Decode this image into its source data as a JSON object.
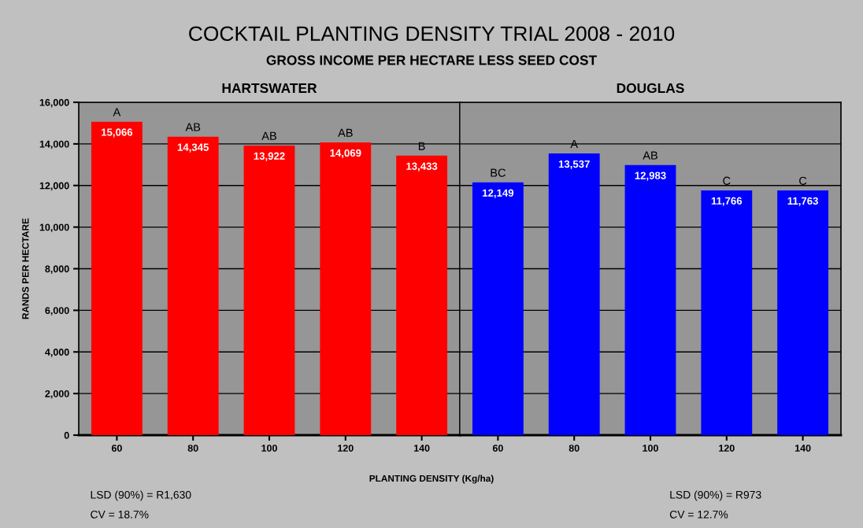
{
  "chart_data": [
    {
      "type": "bar",
      "title": "COCKTAIL PLANTING DENSITY TRIAL 2008 - 2010",
      "subtitle": "GROSS INCOME PER HECTARE LESS SEED COST",
      "xlabel": "PLANTING DENSITY (Kg/ha)",
      "ylabel": "RANDS PER HECTARE",
      "categories": [
        "60",
        "80",
        "100",
        "120",
        "140"
      ],
      "values": [
        15066,
        14345,
        13922,
        14069,
        13433
      ],
      "color": "#ff0000",
      "value_labels": [
        "15,066",
        "14,345",
        "13,922",
        "14,069",
        "13,433"
      ],
      "ylim": [
        0,
        16000
      ],
      "yticks": [
        {
          "value": 0,
          "label": "0"
        },
        {
          "value": 2000,
          "label": "2,000"
        },
        {
          "value": 4000,
          "label": "4,000"
        },
        {
          "value": 6000,
          "label": "6,000"
        },
        {
          "value": 8000,
          "label": "8,000"
        },
        {
          "value": 10000,
          "label": "10,000"
        },
        {
          "value": 12000,
          "label": "12,000"
        },
        {
          "value": 14000,
          "label": "14,000"
        },
        {
          "value": 16000,
          "label": "16,000"
        }
      ],
      "grid": "y",
      "annotations": [
        "HARTSWATER",
        "LSD (90%) = R1,630",
        "CV = 18.7%",
        {
          "text": "A",
          "x": "60",
          "y": 15066
        },
        {
          "text": "AB",
          "x": "80",
          "y": 14345
        },
        {
          "text": "AB",
          "x": "100",
          "y": 13922
        },
        {
          "text": "AB",
          "x": "120",
          "y": 14069
        },
        {
          "text": "B",
          "x": "140",
          "y": 13433
        }
      ]
    },
    {
      "type": "bar",
      "categories": [
        "60",
        "80",
        "100",
        "120",
        "140"
      ],
      "values": [
        12149,
        13537,
        12983,
        11766,
        11763
      ],
      "color": "#0000ff",
      "value_labels": [
        "12,149",
        "13,537",
        "12,983",
        "11,766",
        "11,763"
      ],
      "ylim": [
        0,
        16000
      ],
      "grid": "y",
      "tick_labels": "x",
      "annotations": [
        "DOUGLAS",
        "LSD (90%) = R973",
        "CV = 12.7%",
        {
          "text": "BC",
          "x": "60",
          "y": 12149
        },
        {
          "text": "A",
          "x": "80",
          "y": 13537
        },
        {
          "text": "AB",
          "x": "100",
          "y": 12983
        },
        {
          "text": "C",
          "x": "120",
          "y": 11766
        },
        {
          "text": "C",
          "x": "140",
          "y": 11763
        }
      ]
    }
  ]
}
